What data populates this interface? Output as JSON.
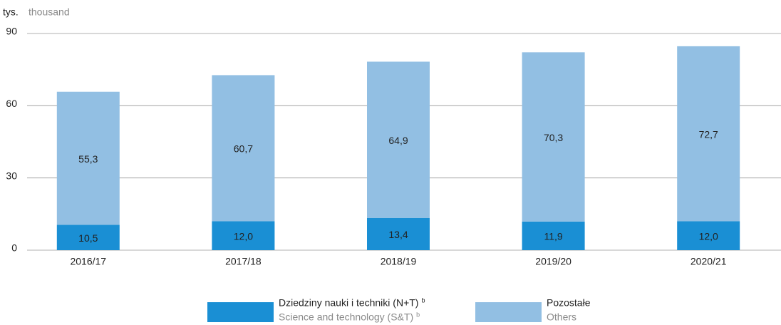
{
  "chart_data": {
    "type": "stacked_bar",
    "unit_label": "tys.",
    "unit_label_en": "thousand",
    "categories": [
      "2016/17",
      "2017/18",
      "2018/19",
      "2019/20",
      "2020/21"
    ],
    "series": [
      {
        "name": "Dziedziny nauki i techniki (N+T)",
        "name_en": "Science and technology (S&T)",
        "note": "b",
        "color": "#1a8fd4",
        "values": [
          10.5,
          12.0,
          13.4,
          11.9,
          12.0
        ],
        "value_labels": [
          "10,5",
          "12,0",
          "13,4",
          "11,9",
          "12,0"
        ]
      },
      {
        "name": "Pozostałe",
        "name_en": "Others",
        "color": "#92bfe3",
        "values": [
          55.3,
          60.7,
          64.9,
          70.3,
          72.7
        ],
        "value_labels": [
          "55,3",
          "60,7",
          "64,9",
          "70,3",
          "72,7"
        ]
      }
    ],
    "ylim": [
      0,
      90
    ],
    "yticks": [
      0,
      30,
      60,
      90
    ],
    "grid": true
  }
}
